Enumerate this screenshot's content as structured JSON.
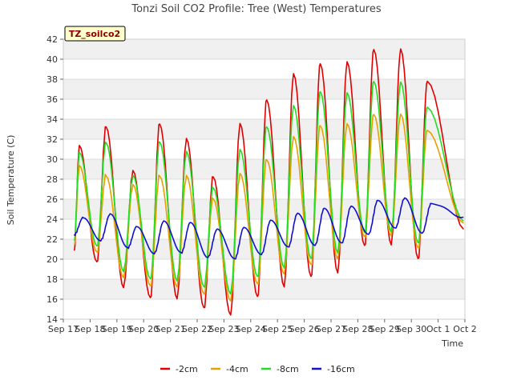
{
  "chart_data": {
    "type": "line",
    "title": "Tonzi Soil CO2 Profile: Tree (West) Temperatures",
    "xlabel": "Time",
    "ylabel": "Soil Temperature (C)",
    "tag": "TZ_soilco2",
    "ylim": [
      14,
      42
    ],
    "y_ticks": [
      "14",
      "16",
      "18",
      "20",
      "22",
      "24",
      "26",
      "28",
      "30",
      "32",
      "34",
      "36",
      "38",
      "40",
      "42"
    ],
    "x_ticks": [
      "Sep 17",
      "Sep 18",
      "Sep 19",
      "Sep 20",
      "Sep 21",
      "Sep 22",
      "Sep 23",
      "Sep 24",
      "Sep 25",
      "Sep 26",
      "Sep 27",
      "Sep 28",
      "Sep 29",
      "Sep 30",
      "Oct 1",
      "Oct 2"
    ],
    "xlim": [
      "Sep 17",
      "Oct 2"
    ],
    "grid": "horizontal bands",
    "legend_position": "bottom",
    "x_unit": "days since Sep 17 00:00",
    "daily": {
      "peak_time": 0.6,
      "min_time": 0.25,
      "depth_16cm_peak_time": 0.75,
      "depth_16cm_min_time": 0.4
    },
    "series": [
      {
        "name": "-2cm",
        "color": "#e00000",
        "start": [
          0.4,
          20.7
        ],
        "end": [
          14.95,
          23.0
        ],
        "daily_min": [
          18.5,
          19.6,
          17.3,
          16.0,
          16.2,
          15.0,
          14.6,
          16.1,
          17.4,
          18.1,
          18.8,
          21.2,
          21.6,
          19.9
        ],
        "daily_max": [
          31.2,
          33.4,
          28.7,
          33.7,
          31.9,
          28.4,
          33.4,
          36.1,
          38.4,
          39.7,
          39.6,
          41.1,
          40.9,
          37.9
        ]
      },
      {
        "name": "-4cm",
        "color": "#e8a000",
        "start": [
          0.4,
          21.3
        ],
        "end": [
          14.95,
          23.6
        ],
        "daily_min": [
          19.6,
          20.6,
          18.3,
          17.2,
          17.4,
          16.4,
          16.0,
          17.4,
          18.7,
          19.3,
          20.2,
          22.1,
          22.5,
          21.0
        ],
        "daily_max": [
          29.2,
          28.5,
          27.3,
          28.5,
          28.2,
          26.2,
          28.4,
          30.1,
          32.1,
          33.5,
          33.4,
          34.6,
          34.4,
          33.0
        ]
      },
      {
        "name": "-8cm",
        "color": "#22dd22",
        "start": [
          0.4,
          21.7
        ],
        "end": [
          14.95,
          23.8
        ],
        "daily_min": [
          20.2,
          21.2,
          18.9,
          17.9,
          18.0,
          17.1,
          16.7,
          18.1,
          19.3,
          19.9,
          20.8,
          22.5,
          22.9,
          21.5
        ],
        "daily_max": [
          30.5,
          31.8,
          28.2,
          31.9,
          30.6,
          27.3,
          30.8,
          33.4,
          35.2,
          36.9,
          36.5,
          37.9,
          37.6,
          35.3
        ]
      },
      {
        "name": "-16cm",
        "color": "#1010cc",
        "start": [
          0.4,
          22.4
        ],
        "end": [
          14.95,
          24.2
        ],
        "daily_min": [
          21.5,
          21.9,
          21.1,
          20.6,
          20.6,
          20.2,
          20.0,
          20.5,
          21.2,
          21.4,
          21.6,
          22.5,
          23.1,
          22.6
        ],
        "daily_max": [
          24.2,
          24.5,
          23.3,
          23.8,
          23.7,
          23.0,
          23.2,
          23.9,
          24.6,
          25.1,
          25.3,
          25.9,
          26.1,
          25.6
        ]
      }
    ]
  }
}
